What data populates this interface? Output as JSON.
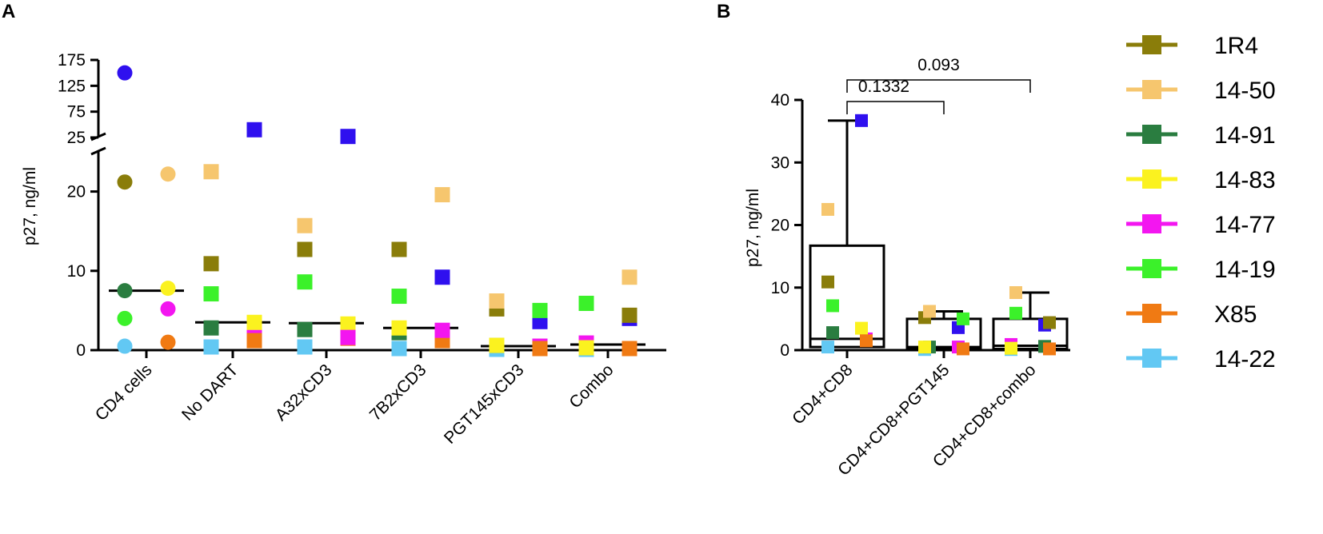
{
  "panel_labels": {
    "a": "A",
    "b": "B"
  },
  "colors": {
    "1R4": "#8a7d0a",
    "14-50": "#f6c66e",
    "14-91": "#2a7d40",
    "14-83": "#fbf21f",
    "14-77": "#f316f0",
    "14-19": "#3bf12a",
    "X85": "#f07a13",
    "14-22": "#62c8f3",
    "blue": "#2f10ef"
  },
  "legend": {
    "items": [
      {
        "name": "1R4",
        "color": "#8a7d0a"
      },
      {
        "name": "14-50",
        "color": "#f6c66e"
      },
      {
        "name": "14-91",
        "color": "#2a7d40"
      },
      {
        "name": "14-83",
        "color": "#fbf21f"
      },
      {
        "name": "14-77",
        "color": "#f316f0"
      },
      {
        "name": "14-19",
        "color": "#3bf12a"
      },
      {
        "name": "X85",
        "color": "#f07a13"
      },
      {
        "name": "14-22",
        "color": "#62c8f3"
      }
    ]
  },
  "chart_data": [
    {
      "panel": "A",
      "type": "scatter",
      "ylabel": "p27, ng/ml",
      "y_lower_range": [
        0,
        25
      ],
      "y_lower_ticks": [
        "0",
        "10",
        "20"
      ],
      "y_upper_range": [
        25,
        175
      ],
      "y_upper_ticks": [
        "25",
        "75",
        "125",
        "175"
      ],
      "categories": [
        "CD4 cells",
        "No DART",
        "A32xCD3",
        "7B2xCD3",
        "PGT145xCD3",
        "Combo"
      ],
      "medians": [
        7.5,
        3.5,
        3.4,
        2.8,
        0.5,
        0.7
      ],
      "points": [
        {
          "cat": 0,
          "donor": "14-22",
          "color": "#62c8f3",
          "shape": "circle",
          "value": 0.5
        },
        {
          "cat": 0,
          "donor": "14-19",
          "color": "#3bf12a",
          "shape": "circle",
          "value": 4
        },
        {
          "cat": 0,
          "donor": "14-91",
          "color": "#2a7d40",
          "shape": "circle",
          "value": 7.5
        },
        {
          "cat": 0,
          "donor": "1R4",
          "color": "#8a7d0a",
          "shape": "circle",
          "value": 21.2
        },
        {
          "cat": 0,
          "donor": "unlisted",
          "color": "#2f10ef",
          "shape": "circle",
          "value": 150
        },
        {
          "cat": 0,
          "donor": "X85",
          "color": "#f07a13",
          "shape": "circle",
          "value": 1
        },
        {
          "cat": 0,
          "donor": "14-77",
          "color": "#f316f0",
          "shape": "circle",
          "value": 5.2
        },
        {
          "cat": 0,
          "donor": "14-83",
          "color": "#fbf21f",
          "shape": "circle",
          "value": 7.8
        },
        {
          "cat": 0,
          "donor": "14-50",
          "color": "#f6c66e",
          "shape": "circle",
          "value": 22.2
        },
        {
          "cat": 1,
          "donor": "14-22",
          "color": "#62c8f3",
          "shape": "square",
          "value": 0.4
        },
        {
          "cat": 1,
          "donor": "14-91",
          "color": "#2a7d40",
          "shape": "square",
          "value": 2.8
        },
        {
          "cat": 1,
          "donor": "14-19",
          "color": "#3bf12a",
          "shape": "square",
          "value": 7.1
        },
        {
          "cat": 1,
          "donor": "1R4",
          "color": "#8a7d0a",
          "shape": "square",
          "value": 10.9
        },
        {
          "cat": 1,
          "donor": "14-50",
          "color": "#f6c66e",
          "shape": "square",
          "value": 22.5
        },
        {
          "cat": 1,
          "donor": "unlisted",
          "color": "#2f10ef",
          "shape": "square",
          "value": 40
        },
        {
          "cat": 1,
          "donor": "14-77",
          "color": "#f316f0",
          "shape": "square",
          "value": 1.8
        },
        {
          "cat": 1,
          "donor": "X85",
          "color": "#f07a13",
          "shape": "square",
          "value": 1.2
        },
        {
          "cat": 1,
          "donor": "14-83",
          "color": "#fbf21f",
          "shape": "square",
          "value": 3.5
        },
        {
          "cat": 2,
          "donor": "14-22",
          "color": "#62c8f3",
          "shape": "square",
          "value": 0.4
        },
        {
          "cat": 2,
          "donor": "14-91",
          "color": "#2a7d40",
          "shape": "square",
          "value": 2.6
        },
        {
          "cat": 2,
          "donor": "14-19",
          "color": "#3bf12a",
          "shape": "square",
          "value": 8.6
        },
        {
          "cat": 2,
          "donor": "1R4",
          "color": "#8a7d0a",
          "shape": "square",
          "value": 12.7
        },
        {
          "cat": 2,
          "donor": "14-50",
          "color": "#f6c66e",
          "shape": "square",
          "value": 15.7
        },
        {
          "cat": 2,
          "donor": "unlisted",
          "color": "#2f10ef",
          "shape": "square",
          "value": 27
        },
        {
          "cat": 2,
          "donor": "14-83",
          "color": "#fbf21f",
          "shape": "square",
          "value": 3.3
        },
        {
          "cat": 2,
          "donor": "X85",
          "color": "#f07a13",
          "shape": "square",
          "value": 1.5
        },
        {
          "cat": 2,
          "donor": "14-77",
          "color": "#f316f0",
          "shape": "square",
          "value": 1.6
        },
        {
          "cat": 3,
          "donor": "14-22",
          "color": "#62c8f3",
          "shape": "square",
          "value": 0.2
        },
        {
          "cat": 3,
          "donor": "14-91",
          "color": "#2a7d40",
          "shape": "square",
          "value": 2.2
        },
        {
          "cat": 3,
          "donor": "14-19",
          "color": "#3bf12a",
          "shape": "square",
          "value": 6.8
        },
        {
          "cat": 3,
          "donor": "1R4",
          "color": "#8a7d0a",
          "shape": "square",
          "value": 12.7
        },
        {
          "cat": 3,
          "donor": "14-83",
          "color": "#fbf21f",
          "shape": "square",
          "value": 2.8
        },
        {
          "cat": 3,
          "donor": "unlisted",
          "color": "#2f10ef",
          "shape": "square",
          "value": 9.2
        },
        {
          "cat": 3,
          "donor": "14-50",
          "color": "#f6c66e",
          "shape": "square",
          "value": 19.6
        },
        {
          "cat": 3,
          "donor": "X85",
          "color": "#f07a13",
          "shape": "square",
          "value": 1.2
        },
        {
          "cat": 3,
          "donor": "14-77",
          "color": "#f316f0",
          "shape": "square",
          "value": 2.5
        },
        {
          "cat": 4,
          "donor": "14-22",
          "color": "#62c8f3",
          "shape": "square",
          "value": 0.1
        },
        {
          "cat": 4,
          "donor": "14-91",
          "color": "#2a7d40",
          "shape": "square",
          "value": 0.6
        },
        {
          "cat": 4,
          "donor": "1R4",
          "color": "#8a7d0a",
          "shape": "square",
          "value": 5.2
        },
        {
          "cat": 4,
          "donor": "14-83",
          "color": "#fbf21f",
          "shape": "square",
          "value": 0.6
        },
        {
          "cat": 4,
          "donor": "14-50",
          "color": "#f6c66e",
          "shape": "square",
          "value": 6.2
        },
        {
          "cat": 4,
          "donor": "unlisted",
          "color": "#2f10ef",
          "shape": "square",
          "value": 3.6
        },
        {
          "cat": 4,
          "donor": "14-77",
          "color": "#f316f0",
          "shape": "square",
          "value": 0.5
        },
        {
          "cat": 4,
          "donor": "14-19",
          "color": "#3bf12a",
          "shape": "square",
          "value": 5.0
        },
        {
          "cat": 4,
          "donor": "X85",
          "color": "#f07a13",
          "shape": "square",
          "value": 0.2
        },
        {
          "cat": 5,
          "donor": "14-22",
          "color": "#62c8f3",
          "shape": "square",
          "value": 0.1
        },
        {
          "cat": 5,
          "donor": "14-91",
          "color": "#2a7d40",
          "shape": "square",
          "value": 0.6
        },
        {
          "cat": 5,
          "donor": "14-19",
          "color": "#3bf12a",
          "shape": "square",
          "value": 5.9
        },
        {
          "cat": 5,
          "donor": "14-77",
          "color": "#f316f0",
          "shape": "square",
          "value": 0.9
        },
        {
          "cat": 5,
          "donor": "14-83",
          "color": "#fbf21f",
          "shape": "square",
          "value": 0.3
        },
        {
          "cat": 5,
          "donor": "14-50",
          "color": "#f6c66e",
          "shape": "square",
          "value": 9.2
        },
        {
          "cat": 5,
          "donor": "unlisted",
          "color": "#2f10ef",
          "shape": "square",
          "value": 4.0
        },
        {
          "cat": 5,
          "donor": "1R4",
          "color": "#8a7d0a",
          "shape": "square",
          "value": 4.4
        },
        {
          "cat": 5,
          "donor": "X85",
          "color": "#f07a13",
          "shape": "square",
          "value": 0.2
        }
      ]
    },
    {
      "panel": "B",
      "type": "box",
      "ylabel": "p27, ng/ml",
      "ylim": [
        0,
        40
      ],
      "yticks": [
        "0",
        "10",
        "20",
        "30",
        "40"
      ],
      "categories": [
        "CD4+CD8",
        "CD4+CD8+PGT145",
        "CD4+CD8+combo"
      ],
      "boxes": [
        {
          "min": 0.2,
          "q1": 0.5,
          "median": 1.8,
          "q3": 16.7,
          "max": 36.7
        },
        {
          "min": 0.1,
          "q1": 0.3,
          "median": 0.5,
          "q3": 5.0,
          "max": 6.2
        },
        {
          "min": 0.1,
          "q1": 0.2,
          "median": 0.7,
          "q3": 5.0,
          "max": 9.2
        }
      ],
      "points": [
        {
          "cat": 0,
          "donor": "14-22",
          "color": "#62c8f3",
          "value": 0.5
        },
        {
          "cat": 0,
          "donor": "14-91",
          "color": "#2a7d40",
          "value": 2.8
        },
        {
          "cat": 0,
          "donor": "1R4",
          "color": "#8a7d0a",
          "value": 10.9
        },
        {
          "cat": 0,
          "donor": "14-19",
          "color": "#3bf12a",
          "value": 7.1
        },
        {
          "cat": 0,
          "donor": "14-50",
          "color": "#f6c66e",
          "value": 22.5
        },
        {
          "cat": 0,
          "donor": "unlisted",
          "color": "#2f10ef",
          "value": 36.7
        },
        {
          "cat": 0,
          "donor": "14-77",
          "color": "#f316f0",
          "value": 1.8
        },
        {
          "cat": 0,
          "donor": "14-83",
          "color": "#fbf21f",
          "value": 3.5
        },
        {
          "cat": 0,
          "donor": "X85",
          "color": "#f07a13",
          "value": 1.5
        },
        {
          "cat": 1,
          "donor": "14-22",
          "color": "#62c8f3",
          "value": 0.1
        },
        {
          "cat": 1,
          "donor": "14-91",
          "color": "#2a7d40",
          "value": 0.5
        },
        {
          "cat": 1,
          "donor": "1R4",
          "color": "#8a7d0a",
          "value": 5.2
        },
        {
          "cat": 1,
          "donor": "14-50",
          "color": "#f6c66e",
          "value": 6.2
        },
        {
          "cat": 1,
          "donor": "14-83",
          "color": "#fbf21f",
          "value": 0.5
        },
        {
          "cat": 1,
          "donor": "unlisted",
          "color": "#2f10ef",
          "value": 3.6
        },
        {
          "cat": 1,
          "donor": "14-19",
          "color": "#3bf12a",
          "value": 5.0
        },
        {
          "cat": 1,
          "donor": "14-77",
          "color": "#f316f0",
          "value": 0.5
        },
        {
          "cat": 1,
          "donor": "X85",
          "color": "#f07a13",
          "value": 0.2
        },
        {
          "cat": 2,
          "donor": "14-22",
          "color": "#62c8f3",
          "value": 0.1
        },
        {
          "cat": 2,
          "donor": "14-19",
          "color": "#3bf12a",
          "value": 5.9
        },
        {
          "cat": 2,
          "donor": "14-77",
          "color": "#f316f0",
          "value": 0.9
        },
        {
          "cat": 2,
          "donor": "14-50",
          "color": "#f6c66e",
          "value": 9.2
        },
        {
          "cat": 2,
          "donor": "14-83",
          "color": "#fbf21f",
          "value": 0.3
        },
        {
          "cat": 2,
          "donor": "unlisted",
          "color": "#2f10ef",
          "value": 4.0
        },
        {
          "cat": 2,
          "donor": "1R4",
          "color": "#8a7d0a",
          "value": 4.4
        },
        {
          "cat": 2,
          "donor": "14-91",
          "color": "#2a7d40",
          "value": 0.6
        },
        {
          "cat": 2,
          "donor": "X85",
          "color": "#f07a13",
          "value": 0.2
        }
      ],
      "comparisons": [
        {
          "from": 0,
          "to": 2,
          "label": "0.093"
        },
        {
          "from": 0,
          "to": 1,
          "label": "0.1332"
        }
      ]
    }
  ]
}
